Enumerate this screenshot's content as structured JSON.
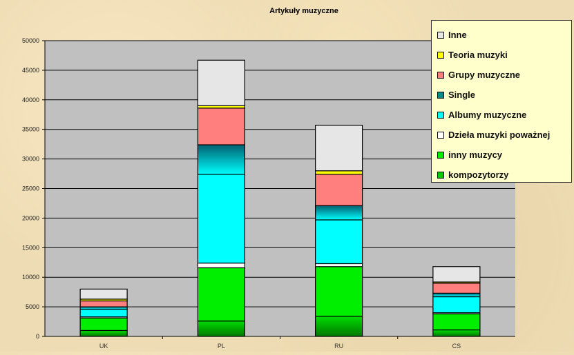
{
  "chart_data": {
    "type": "bar",
    "stacked": true,
    "title": "Artykuły muzyczne",
    "xlabel": "",
    "ylabel": "",
    "categories": [
      "UK",
      "PL",
      "RU",
      "CS"
    ],
    "ylim": [
      0,
      50000
    ],
    "yticks": [
      0,
      5000,
      10000,
      15000,
      20000,
      25000,
      30000,
      35000,
      40000,
      45000,
      50000
    ],
    "grid": true,
    "legend_position": "top-right",
    "series": [
      {
        "name": "kompozytorzy",
        "color": "#00cc00",
        "values": [
          1000,
          2600,
          3400,
          1100
        ]
      },
      {
        "name": "inny muzycy",
        "color": "#00ee00",
        "values": [
          2100,
          9000,
          8400,
          2700
        ]
      },
      {
        "name": "Dzieła muzyki poważnej",
        "color": "#ffffff",
        "values": [
          200,
          800,
          500,
          200
        ]
      },
      {
        "name": "Albumy muzyczne",
        "color": "#00ffff",
        "values": [
          1300,
          15000,
          7400,
          2700
        ]
      },
      {
        "name": "Single",
        "color": "#008b8b",
        "values": [
          400,
          5000,
          2400,
          600
        ]
      },
      {
        "name": "Grupy muzyczne",
        "color": "#ff7f7f",
        "values": [
          1000,
          6200,
          5300,
          1700
        ]
      },
      {
        "name": "Teoria muzyki",
        "color": "#ffff00",
        "values": [
          300,
          400,
          600,
          200
        ]
      },
      {
        "name": "Inne",
        "color": "#e6e6e6",
        "values": [
          1700,
          7700,
          7700,
          2600
        ]
      }
    ]
  }
}
